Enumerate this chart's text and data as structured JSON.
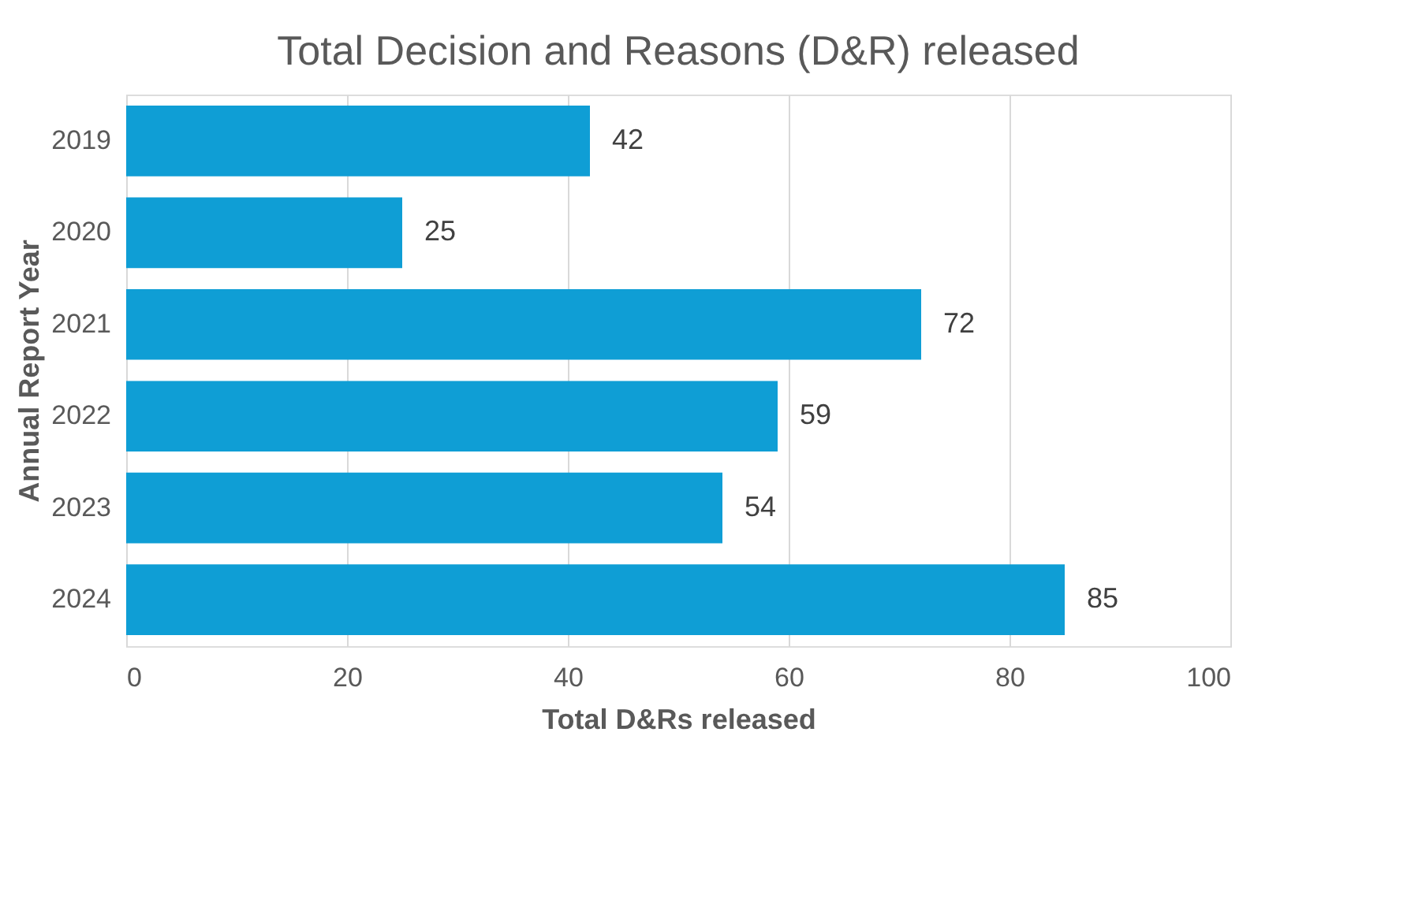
{
  "chart_data": {
    "type": "bar",
    "orientation": "horizontal",
    "title": "Total Decision and Reasons (D&R) released",
    "xlabel": "Total D&Rs released",
    "ylabel": "Annual Report Year",
    "categories": [
      "2019",
      "2020",
      "2021",
      "2022",
      "2023",
      "2024"
    ],
    "values": [
      42,
      25,
      72,
      59,
      54,
      85
    ],
    "color": "#0f9ed5",
    "xlim": [
      0,
      100
    ],
    "xticks": [
      0,
      20,
      40,
      60,
      80,
      100
    ],
    "grid": "x",
    "data_labels": true
  }
}
